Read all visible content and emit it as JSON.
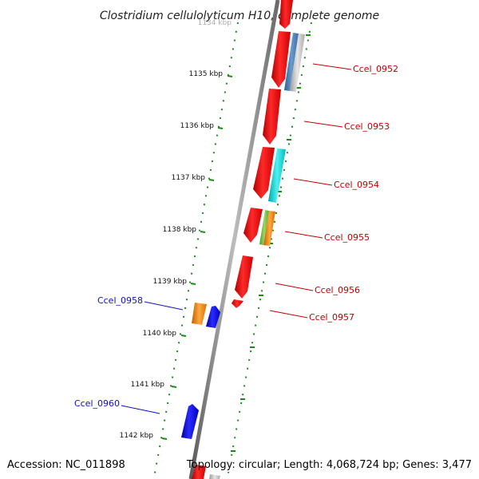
{
  "title": "Clostridium cellulolyticum H10, complete genome",
  "accession": "Accession: NC_011898",
  "topology": "Topology: circular; Length: 4,068,724 bp; Genes: 3,477",
  "colors": {
    "forward_gene": "#ee1111",
    "reverse_gene": "#1414dd",
    "label_forward": "#c00000",
    "label_reverse": "#1010c0",
    "tick": "#1a8a1a",
    "backbone": "#888888"
  },
  "kbp_ticks": [
    "1134 kbp",
    "1135 kbp",
    "1136 kbp",
    "1137 kbp",
    "1138 kbp",
    "1139 kbp",
    "1140 kbp",
    "1141 kbp",
    "1142 kbp"
  ],
  "genes_forward": [
    {
      "label": "Ccel_0952"
    },
    {
      "label": "Ccel_0953"
    },
    {
      "label": "Ccel_0954"
    },
    {
      "label": "Ccel_0955"
    },
    {
      "label": "Ccel_0956"
    },
    {
      "label": "Ccel_0957"
    }
  ],
  "genes_reverse": [
    {
      "label": "Ccel_0958"
    },
    {
      "label": "Ccel_0960"
    }
  ]
}
